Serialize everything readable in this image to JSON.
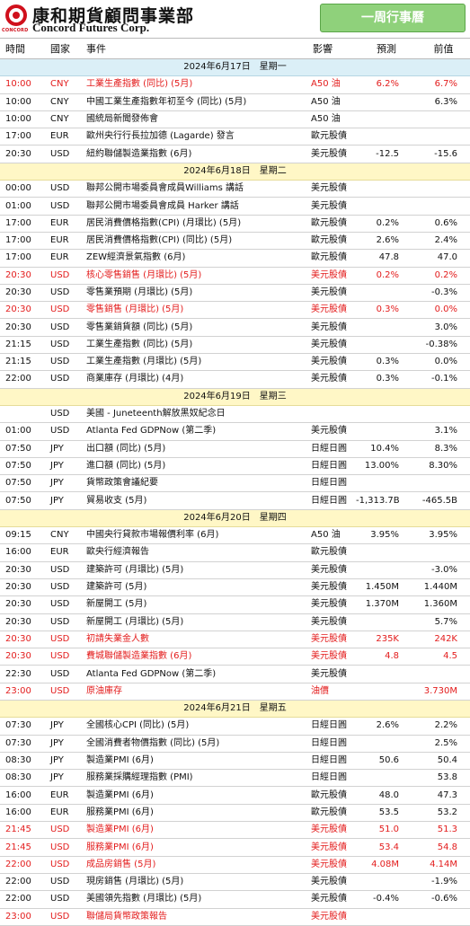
{
  "header": {
    "company_cn": "康和期貨顧問事業部",
    "company_en": "Concord Futures Corp.",
    "logo_sub": "CONCORD",
    "badge": "一周行事曆"
  },
  "columns": [
    "時間",
    "國家",
    "事件",
    "影響",
    "預測",
    "前值"
  ],
  "colors": {
    "highlight": "#e31c1c",
    "date_bar": "#fff7c6",
    "first_date_bar": "#dbeff7",
    "badge": "#8fd17b"
  },
  "rows": [
    {
      "type": "date",
      "label": "2024年6月17日　星期一"
    },
    {
      "time": "10:00",
      "cur": "CNY",
      "event": "工業生產指數 (同比) (5月)",
      "impact": "A50 油",
      "fc": "6.2%",
      "pv": "6.7%",
      "hl": true
    },
    {
      "time": "10:00",
      "cur": "CNY",
      "event": "中國工業生產指數年初至今 (同比) (5月)",
      "impact": "A50 油",
      "fc": "",
      "pv": "6.3%"
    },
    {
      "time": "10:00",
      "cur": "CNY",
      "event": "國統局新聞發佈會",
      "impact": "A50 油",
      "fc": "",
      "pv": ""
    },
    {
      "time": "17:00",
      "cur": "EUR",
      "event": "歐州央行行長拉加德 (Lagarde) 發言",
      "impact": "歐元股債",
      "fc": "",
      "pv": ""
    },
    {
      "time": "20:30",
      "cur": "USD",
      "event": "紐約聯儲製造業指數 (6月)",
      "impact": "美元股債",
      "fc": "-12.5",
      "pv": "-15.6"
    },
    {
      "type": "date",
      "label": "2024年6月18日　星期二"
    },
    {
      "time": "00:00",
      "cur": "USD",
      "event": "聯邦公開市場委員會成員Williams 講話",
      "impact": "美元股債",
      "fc": "",
      "pv": ""
    },
    {
      "time": "01:00",
      "cur": "USD",
      "event": "聯邦公開市場委員會成員 Harker 講話",
      "impact": "美元股債",
      "fc": "",
      "pv": ""
    },
    {
      "time": "17:00",
      "cur": "EUR",
      "event": "居民消費價格指數(CPI) (月環比) (5月)",
      "impact": "歐元股債",
      "fc": "0.2%",
      "pv": "0.6%"
    },
    {
      "time": "17:00",
      "cur": "EUR",
      "event": "居民消費價格指數(CPI) (同比) (5月)",
      "impact": "歐元股債",
      "fc": "2.6%",
      "pv": "2.4%"
    },
    {
      "time": "17:00",
      "cur": "EUR",
      "event": "ZEW經濟景氣指數 (6月)",
      "impact": "歐元股債",
      "fc": "47.8",
      "pv": "47.0"
    },
    {
      "time": "20:30",
      "cur": "USD",
      "event": "核心零售銷售 (月環比) (5月)",
      "impact": "美元股債",
      "fc": "0.2%",
      "pv": "0.2%",
      "hl": true
    },
    {
      "time": "20:30",
      "cur": "USD",
      "event": "零售業預期 (月環比) (5月)",
      "impact": "美元股債",
      "fc": "",
      "pv": "-0.3%"
    },
    {
      "time": "20:30",
      "cur": "USD",
      "event": "零售銷售 (月環比) (5月)",
      "impact": "美元股債",
      "fc": "0.3%",
      "pv": "0.0%",
      "hl": true
    },
    {
      "time": "20:30",
      "cur": "USD",
      "event": "零售業銷貨額 (同比) (5月)",
      "impact": "美元股債",
      "fc": "",
      "pv": "3.0%"
    },
    {
      "time": "21:15",
      "cur": "USD",
      "event": "工業生產指數 (同比) (5月)",
      "impact": "美元股債",
      "fc": "",
      "pv": "-0.38%"
    },
    {
      "time": "21:15",
      "cur": "USD",
      "event": "工業生產指數 (月環比) (5月)",
      "impact": "美元股債",
      "fc": "0.3%",
      "pv": "0.0%"
    },
    {
      "time": "22:00",
      "cur": "USD",
      "event": "商業庫存 (月環比) (4月)",
      "impact": "美元股債",
      "fc": "0.3%",
      "pv": "-0.1%"
    },
    {
      "type": "date",
      "label": "2024年6月19日　星期三"
    },
    {
      "time": "",
      "cur": "USD",
      "event": "美國 - Juneteenth解放黑奴紀念日",
      "impact": "",
      "fc": "",
      "pv": ""
    },
    {
      "time": "01:00",
      "cur": "USD",
      "event": "Atlanta Fed GDPNow (第二季)",
      "impact": "美元股債",
      "fc": "",
      "pv": "3.1%"
    },
    {
      "time": "07:50",
      "cur": "JPY",
      "event": "出口額 (同比) (5月)",
      "impact": "日經日圓",
      "fc": "10.4%",
      "pv": "8.3%"
    },
    {
      "time": "07:50",
      "cur": "JPY",
      "event": "進口額 (同比) (5月)",
      "impact": "日經日圓",
      "fc": "13.00%",
      "pv": "8.30%"
    },
    {
      "time": "07:50",
      "cur": "JPY",
      "event": "貨幣政策會議紀要",
      "impact": "日經日圓",
      "fc": "",
      "pv": ""
    },
    {
      "time": "07:50",
      "cur": "JPY",
      "event": "貿易收支 (5月)",
      "impact": "日經日圓",
      "fc": "-1,313.7B",
      "pv": "-465.5B"
    },
    {
      "type": "date",
      "label": "2024年6月20日　星期四"
    },
    {
      "time": "09:15",
      "cur": "CNY",
      "event": "中國央行貸款市場報價利率 (6月)",
      "impact": "A50 油",
      "fc": "3.95%",
      "pv": "3.95%"
    },
    {
      "time": "16:00",
      "cur": "EUR",
      "event": "歐央行經濟報告",
      "impact": "歐元股債",
      "fc": "",
      "pv": ""
    },
    {
      "time": "20:30",
      "cur": "USD",
      "event": "建築許可 (月環比) (5月)",
      "impact": "美元股債",
      "fc": "",
      "pv": "-3.0%"
    },
    {
      "time": "20:30",
      "cur": "USD",
      "event": "建築許可 (5月)",
      "impact": "美元股債",
      "fc": "1.450M",
      "pv": "1.440M"
    },
    {
      "time": "20:30",
      "cur": "USD",
      "event": "新屋開工 (5月)",
      "impact": "美元股債",
      "fc": "1.370M",
      "pv": "1.360M"
    },
    {
      "time": "20:30",
      "cur": "USD",
      "event": "新屋開工 (月環比) (5月)",
      "impact": "美元股債",
      "fc": "",
      "pv": "5.7%"
    },
    {
      "time": "20:30",
      "cur": "USD",
      "event": "初請失業金人數",
      "impact": "美元股債",
      "fc": "235K",
      "pv": "242K",
      "hl": true
    },
    {
      "time": "20:30",
      "cur": "USD",
      "event": "費城聯儲製造業指數 (6月)",
      "impact": "美元股債",
      "fc": "4.8",
      "pv": "4.5",
      "hl": true
    },
    {
      "time": "22:30",
      "cur": "USD",
      "event": "Atlanta Fed GDPNow (第二季)",
      "impact": "美元股債",
      "fc": "",
      "pv": ""
    },
    {
      "time": "23:00",
      "cur": "USD",
      "event": "原油庫存",
      "impact": "油價",
      "fc": "",
      "pv": "3.730M",
      "hl": true
    },
    {
      "type": "date",
      "label": "2024年6月21日　星期五"
    },
    {
      "time": "07:30",
      "cur": "JPY",
      "event": "全國核心CPI (同比) (5月)",
      "impact": "日經日圓",
      "fc": "2.6%",
      "pv": "2.2%"
    },
    {
      "time": "07:30",
      "cur": "JPY",
      "event": "全國消費者物價指數 (同比) (5月)",
      "impact": "日經日圓",
      "fc": "",
      "pv": "2.5%"
    },
    {
      "time": "08:30",
      "cur": "JPY",
      "event": "製造業PMI (6月)",
      "impact": "日經日圓",
      "fc": "50.6",
      "pv": "50.4"
    },
    {
      "time": "08:30",
      "cur": "JPY",
      "event": "服務業採購經理指數 (PMI)",
      "impact": "日經日圓",
      "fc": "",
      "pv": "53.8"
    },
    {
      "time": "16:00",
      "cur": "EUR",
      "event": "製造業PMI (6月)",
      "impact": "歐元股債",
      "fc": "48.0",
      "pv": "47.3"
    },
    {
      "time": "16:00",
      "cur": "EUR",
      "event": "服務業PMI (6月)",
      "impact": "歐元股債",
      "fc": "53.5",
      "pv": "53.2"
    },
    {
      "time": "21:45",
      "cur": "USD",
      "event": "製造業PMI (6月)",
      "impact": "美元股債",
      "fc": "51.0",
      "pv": "51.3",
      "hl": true
    },
    {
      "time": "21:45",
      "cur": "USD",
      "event": "服務業PMI (6月)",
      "impact": "美元股債",
      "fc": "53.4",
      "pv": "54.8",
      "hl": true
    },
    {
      "time": "22:00",
      "cur": "USD",
      "event": "成品房銷售 (5月)",
      "impact": "美元股債",
      "fc": "4.08M",
      "pv": "4.14M",
      "hl": true
    },
    {
      "time": "22:00",
      "cur": "USD",
      "event": "現房銷售 (月環比) (5月)",
      "impact": "美元股債",
      "fc": "",
      "pv": "-1.9%"
    },
    {
      "time": "22:00",
      "cur": "USD",
      "event": "美國領先指數 (月環比) (5月)",
      "impact": "美元股債",
      "fc": "-0.4%",
      "pv": "-0.6%"
    },
    {
      "time": "23:00",
      "cur": "USD",
      "event": "聯儲局貨幣政策報告",
      "impact": "美元股債",
      "fc": "",
      "pv": "",
      "hl": true
    }
  ]
}
